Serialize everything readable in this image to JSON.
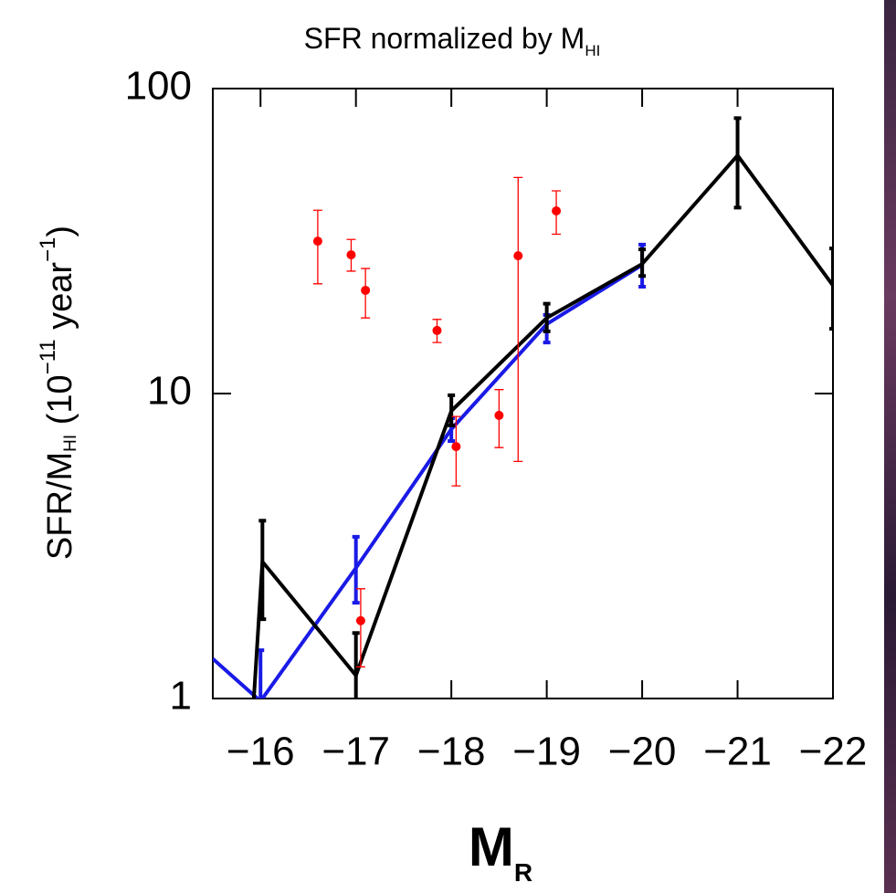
{
  "chart_data": {
    "type": "line",
    "title": "SFR normalized by M",
    "title_sub": "HI",
    "ylabel": [
      "SFR/M",
      "HI",
      " (10",
      "−11",
      " year",
      "−1",
      ")"
    ],
    "xlabel": "M",
    "xlabel_sub": "R",
    "xlim": [
      -15.5,
      -22
    ],
    "xticks": [
      {
        "value": -16,
        "label": "−16"
      },
      {
        "value": -17,
        "label": "−17"
      },
      {
        "value": -18,
        "label": "−18"
      },
      {
        "value": -19,
        "label": "−19"
      },
      {
        "value": -20,
        "label": "−20"
      },
      {
        "value": -21,
        "label": "−21"
      },
      {
        "value": -22,
        "label": "−22"
      }
    ],
    "ylim": [
      1,
      100
    ],
    "yticks": [
      1,
      10,
      100
    ],
    "ylog": true,
    "series": [
      {
        "mode": "line",
        "color": "#1a1ae6",
        "x": [
          -15.5,
          -16,
          -17,
          -18,
          -19,
          -20
        ],
        "values": [
          1.35,
          0.98,
          2.68,
          7.64,
          16.9,
          26.4
        ],
        "lower": [
          null,
          0.8,
          2.06,
          6.99,
          14.7,
          22.4
        ],
        "upper": [
          null,
          1.44,
          3.39,
          8.31,
          18.1,
          30.8
        ]
      },
      {
        "mode": "line",
        "color": "#000000",
        "x": [
          -15.93,
          -16.02,
          -17,
          -18,
          -19,
          -20,
          -21,
          -22
        ],
        "values": [
          1.0,
          2.81,
          1.19,
          8.77,
          17.7,
          26.6,
          60.4,
          22.6
        ],
        "lower": [
          null,
          1.82,
          0.8,
          7.86,
          16.0,
          24.3,
          40.7,
          16.3
        ],
        "upper": [
          null,
          3.83,
          1.64,
          9.87,
          19.7,
          29.7,
          80.0,
          29.9
        ]
      },
      {
        "mode": "points",
        "color": "#ff0000",
        "x": [
          -16.6,
          -16.95,
          -17.1,
          -17.85,
          -18.05,
          -18.5,
          -18.7,
          -19.1,
          -17.05
        ],
        "values": [
          31.6,
          28.5,
          21.8,
          16.1,
          6.7,
          8.48,
          28.3,
          39.7,
          1.8
        ],
        "lower": [
          22.9,
          25.2,
          17.7,
          14.7,
          4.98,
          6.65,
          5.99,
          33.3,
          1.27
        ],
        "upper": [
          39.9,
          32.0,
          25.7,
          17.5,
          8.41,
          10.3,
          51.1,
          46.2,
          2.29
        ]
      }
    ]
  }
}
